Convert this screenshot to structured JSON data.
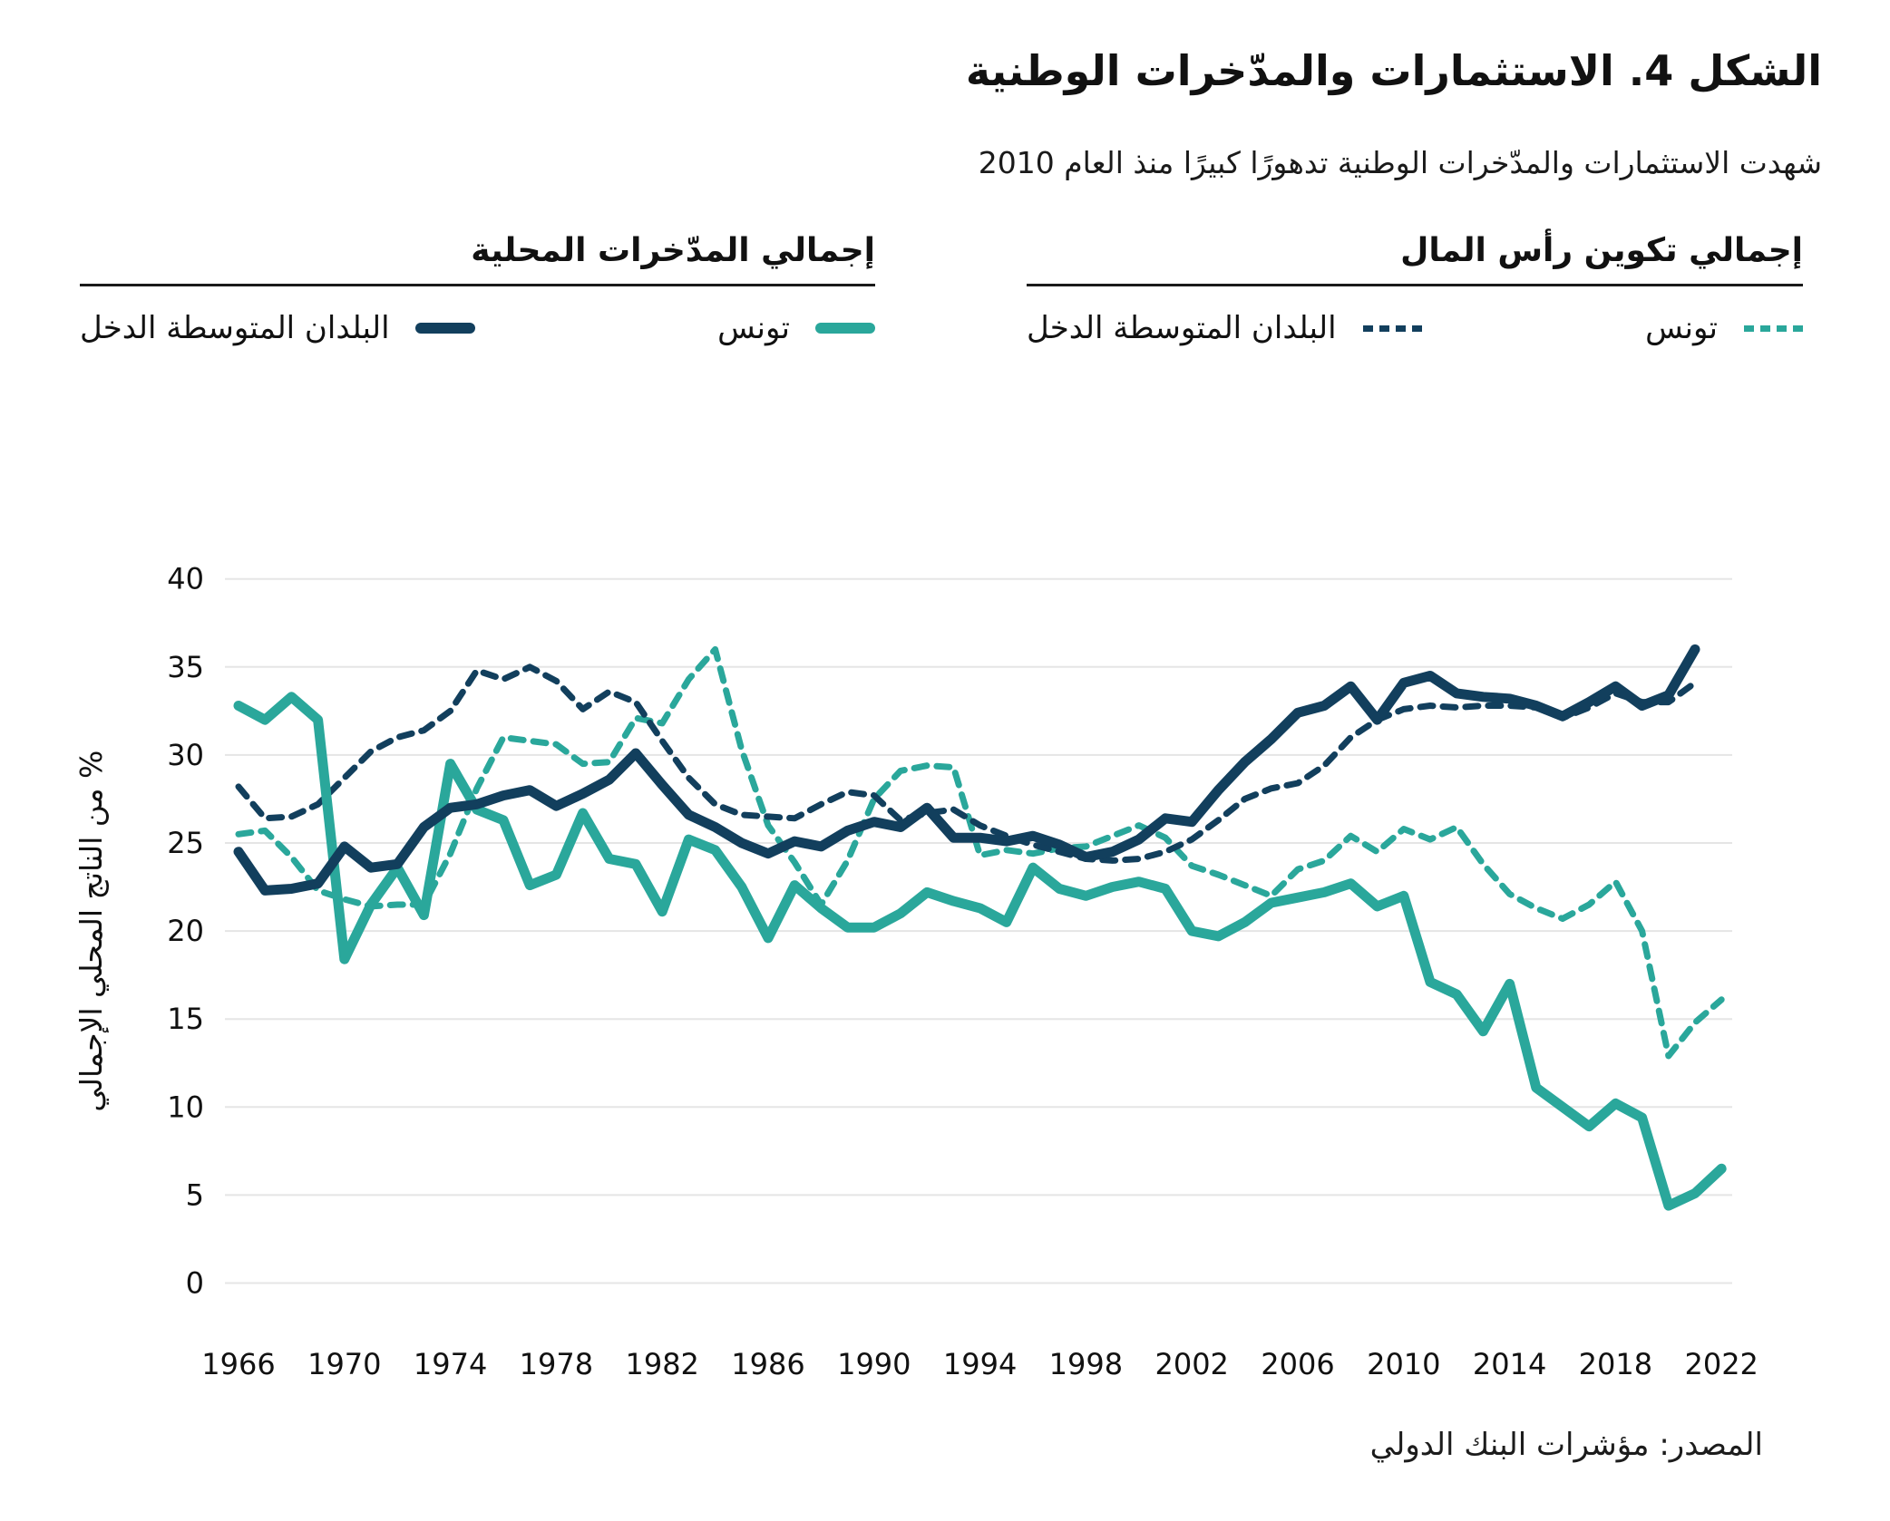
{
  "header": {
    "title": "الشكل 4. الاستثمارات والمدّخرات الوطنية",
    "subtitle": "شهدت الاستثمارات والمدّخرات الوطنية تدهورًا كبيرًا منذ العام 2010"
  },
  "legend": {
    "capital_formation": {
      "heading": "إجمالي تكوين رأس المال",
      "items": [
        {
          "label": "تونس",
          "color": "#2aa79b",
          "style": "dashed"
        },
        {
          "label": "البلدان المتوسطة الدخل",
          "color": "#123f5d",
          "style": "dashed"
        }
      ]
    },
    "domestic_savings": {
      "heading": "إجمالي المدّخرات المحلية",
      "items": [
        {
          "label": "تونس",
          "color": "#2aa79b",
          "style": "solid"
        },
        {
          "label": "البلدان المتوسطة الدخل",
          "color": "#123f5d",
          "style": "solid"
        }
      ]
    }
  },
  "chart_data": {
    "type": "line",
    "title": "",
    "xlabel": "",
    "ylabel": "% من الناتج المحلي الإجمالي",
    "ylim": [
      0,
      40
    ],
    "yticks": [
      0,
      5,
      10,
      15,
      20,
      25,
      30,
      35,
      40
    ],
    "xticks": [
      1966,
      1970,
      1974,
      1978,
      1982,
      1986,
      1990,
      1994,
      1998,
      2002,
      2006,
      2010,
      2014,
      2018,
      2022
    ],
    "grid": "horizontal",
    "legend_position": "top",
    "x_start": 1966,
    "x_end": 2022,
    "x": [
      1966,
      1967,
      1968,
      1969,
      1970,
      1971,
      1972,
      1973,
      1974,
      1975,
      1976,
      1977,
      1978,
      1979,
      1980,
      1981,
      1982,
      1983,
      1984,
      1985,
      1986,
      1987,
      1988,
      1989,
      1990,
      1991,
      1992,
      1993,
      1994,
      1995,
      1996,
      1997,
      1998,
      1999,
      2000,
      2001,
      2002,
      2003,
      2004,
      2005,
      2006,
      2007,
      2008,
      2009,
      2010,
      2011,
      2012,
      2013,
      2014,
      2015,
      2016,
      2017,
      2018,
      2019,
      2020,
      2021,
      2022
    ],
    "series": [
      {
        "name": "إجمالي تكوين رأس المال — تونس",
        "group": "capital_formation",
        "country": "تونس",
        "style": "dashed",
        "color": "#2aa79b",
        "values": [
          25.5,
          25.7,
          24.2,
          22.3,
          21.8,
          21.4,
          21.5,
          21.5,
          24.4,
          28.1,
          31.0,
          30.8,
          30.6,
          29.5,
          29.6,
          32.1,
          31.8,
          34.3,
          36.0,
          30.3,
          26.0,
          23.9,
          21.5,
          24.0,
          27.5,
          29.1,
          29.4,
          29.3,
          24.3,
          24.6,
          24.4,
          24.7,
          24.8,
          25.4,
          26.0,
          25.3,
          23.7,
          23.2,
          22.6,
          22.0,
          23.5,
          24.0,
          25.4,
          24.5,
          25.8,
          25.2,
          25.9,
          23.8,
          22.1,
          21.3,
          20.7,
          21.5,
          22.8,
          20.0,
          12.9,
          14.8,
          16.1
        ]
      },
      {
        "name": "إجمالي تكوين رأس المال — البلدان المتوسطة الدخل",
        "group": "capital_formation",
        "country": "البلدان المتوسطة الدخل",
        "style": "dashed",
        "color": "#123f5d",
        "values": [
          28.2,
          26.4,
          26.5,
          27.2,
          28.7,
          30.2,
          31.0,
          31.4,
          32.5,
          34.8,
          34.3,
          35.0,
          34.2,
          32.6,
          33.6,
          33.0,
          30.8,
          28.7,
          27.2,
          26.6,
          26.5,
          26.4,
          27.2,
          27.9,
          27.7,
          26.3,
          26.7,
          26.9,
          26.0,
          25.4,
          24.9,
          24.5,
          24.1,
          24.0,
          24.1,
          24.5,
          25.2,
          26.3,
          27.5,
          28.1,
          28.4,
          29.4,
          31.0,
          32.0,
          32.6,
          32.8,
          32.7,
          32.8,
          32.8,
          32.7,
          32.1,
          32.7,
          33.5,
          33.0,
          33.0,
          34.1,
          null
        ]
      },
      {
        "name": "إجمالي المدّخرات المحلية — تونس",
        "group": "domestic_savings",
        "country": "تونس",
        "style": "solid",
        "color": "#2aa79b",
        "values": [
          32.8,
          32.0,
          33.3,
          32.0,
          18.4,
          21.5,
          23.6,
          20.9,
          29.5,
          26.9,
          26.3,
          22.6,
          23.2,
          26.7,
          24.1,
          23.8,
          21.1,
          25.2,
          24.6,
          22.5,
          19.6,
          22.6,
          21.3,
          20.2,
          20.2,
          21.0,
          22.2,
          21.7,
          21.3,
          20.5,
          23.6,
          22.4,
          22.0,
          22.5,
          22.8,
          22.4,
          20.0,
          19.7,
          20.5,
          21.6,
          21.9,
          22.2,
          22.7,
          21.4,
          22.0,
          17.1,
          16.4,
          14.3,
          17.0,
          11.1,
          10.0,
          8.9,
          10.2,
          9.4,
          4.4,
          5.1,
          6.5
        ]
      },
      {
        "name": "إجمالي المدّخرات المحلية — البلدان المتوسطة الدخل",
        "group": "domestic_savings",
        "country": "البلدان المتوسطة الدخل",
        "style": "solid",
        "color": "#123f5d",
        "values": [
          24.5,
          22.3,
          22.4,
          22.7,
          24.8,
          23.6,
          23.8,
          25.9,
          27.0,
          27.2,
          27.7,
          28.0,
          27.1,
          27.8,
          28.6,
          30.1,
          28.3,
          26.6,
          25.9,
          25.0,
          24.4,
          25.1,
          24.8,
          25.7,
          26.2,
          25.9,
          27.0,
          25.3,
          25.3,
          25.1,
          25.4,
          24.9,
          24.2,
          24.5,
          25.2,
          26.4,
          26.2,
          28.0,
          29.6,
          30.9,
          32.4,
          32.8,
          33.9,
          32.0,
          34.1,
          34.5,
          33.5,
          33.3,
          33.2,
          32.8,
          32.2,
          33.0,
          33.9,
          32.8,
          33.4,
          36.0,
          null
        ]
      }
    ]
  },
  "source": "المصدر: مؤشرات البنك الدولي",
  "colors": {
    "teal": "#2aa79b",
    "navy": "#123f5d",
    "gridline": "#e5e5e5",
    "text": "#111111"
  }
}
